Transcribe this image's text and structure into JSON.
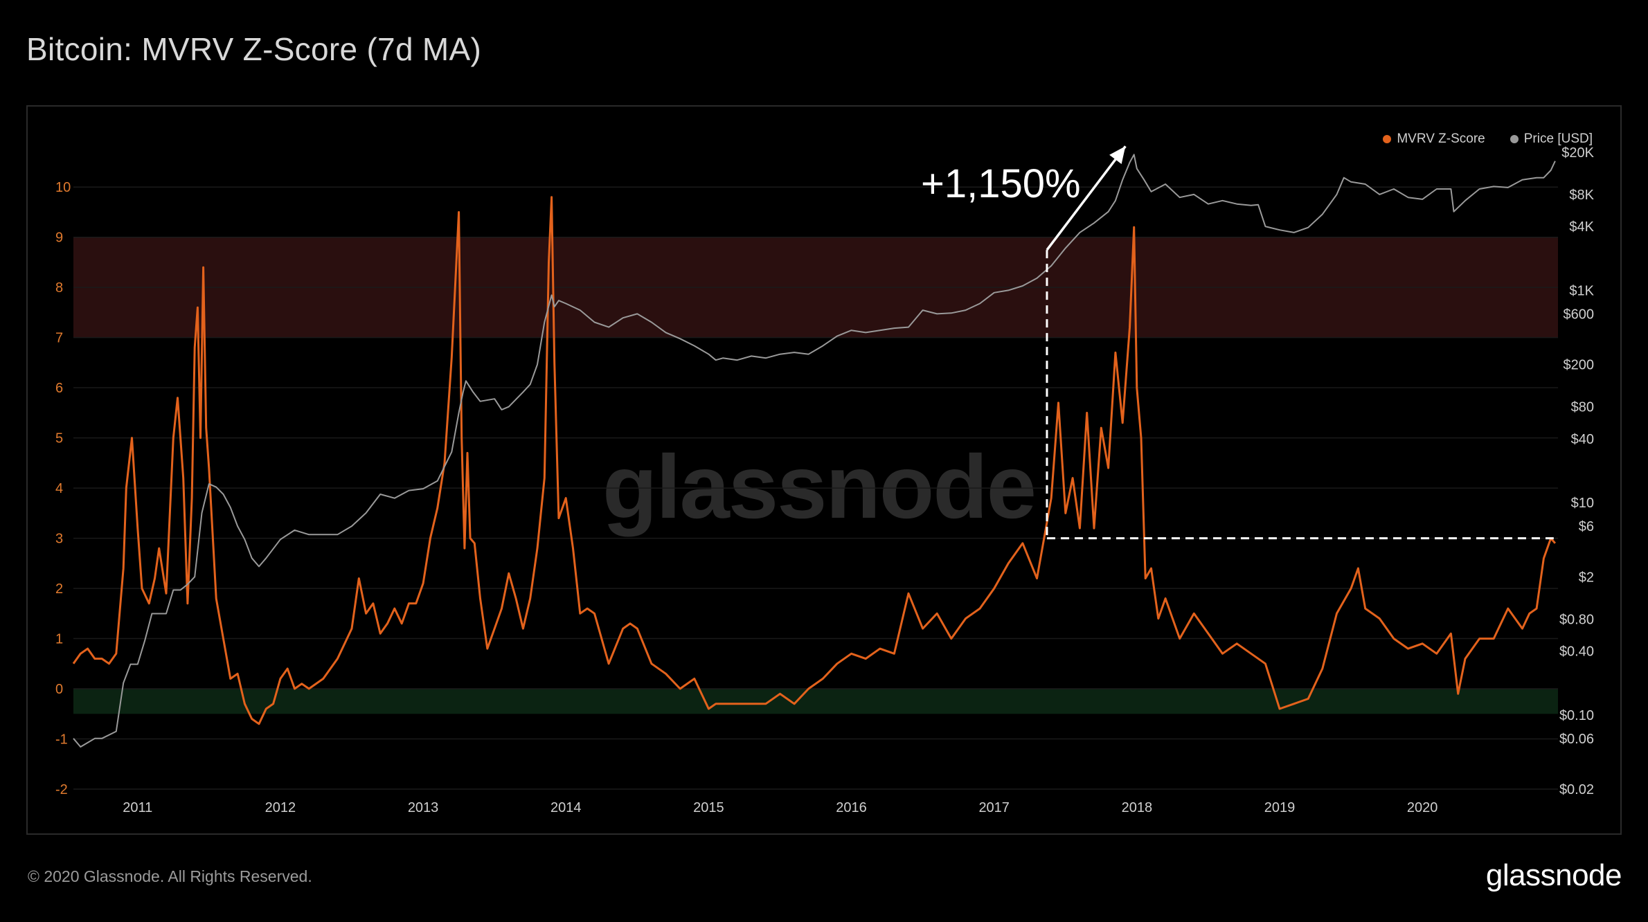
{
  "header": {
    "title": "Bitcoin: MVRV Z-Score (7d MA)"
  },
  "footer": {
    "copyright": "© 2020 Glassnode. All Rights Reserved.",
    "brand": "glassnode"
  },
  "watermark": "glassnode",
  "annotation": {
    "text": "+1,150%"
  },
  "colors": {
    "zscore": "#e3621c",
    "price": "#9a9a9a",
    "top_band": "#2a0f0f",
    "bottom_band": "#0b2312",
    "background": "#000000"
  },
  "chart_data": {
    "type": "line",
    "title": "Bitcoin: MVRV Z-Score (7d MA)",
    "legend": {
      "placement": "top-right",
      "entries": [
        {
          "name": "MVRV Z-Score",
          "color": "#e3621c"
        },
        {
          "name": "Price [USD]",
          "color": "#9a9a9a"
        }
      ]
    },
    "x_axis": {
      "range": [
        2010.55,
        2020.95
      ],
      "tick_labels": [
        "2011",
        "2012",
        "2013",
        "2014",
        "2015",
        "2016",
        "2017",
        "2018",
        "2019",
        "2020"
      ],
      "tick_values": [
        2011,
        2012,
        2013,
        2014,
        2015,
        2016,
        2017,
        2018,
        2019,
        2020
      ]
    },
    "y_left": {
      "range": [
        -2,
        10.9
      ],
      "tick_labels": [
        "-2",
        "-1",
        "0",
        "1",
        "2",
        "3",
        "4",
        "5",
        "6",
        "7",
        "8",
        "9",
        "10"
      ]
    },
    "y_right": {
      "scale": "log",
      "range": [
        0.02,
        25000
      ],
      "tick_labels": [
        "$0.02",
        "$0.06",
        "$0.10",
        "$0.40",
        "$0.80",
        "$2",
        "$6",
        "$10",
        "$40",
        "$80",
        "$200",
        "$600",
        "$1K",
        "$4K",
        "$8K",
        "$20K"
      ],
      "tick_values": [
        0.02,
        0.06,
        0.1,
        0.4,
        0.8,
        2,
        6,
        10,
        40,
        80,
        200,
        600,
        1000,
        4000,
        8000,
        20000
      ]
    },
    "bands": [
      {
        "name": "top",
        "y_from": 7,
        "y_to": 9
      },
      {
        "name": "bottom",
        "y_from": -0.5,
        "y_to": 0
      }
    ],
    "grid": true,
    "series": [
      {
        "name": "MVRV Z-Score",
        "axis": "left",
        "x": [
          2010.55,
          2010.6,
          2010.65,
          2010.7,
          2010.75,
          2010.8,
          2010.85,
          2010.9,
          2010.92,
          2010.96,
          2011.0,
          2011.03,
          2011.08,
          2011.12,
          2011.15,
          2011.2,
          2011.25,
          2011.28,
          2011.32,
          2011.35,
          2011.38,
          2011.4,
          2011.42,
          2011.44,
          2011.46,
          2011.48,
          2011.5,
          2011.55,
          2011.6,
          2011.65,
          2011.7,
          2011.75,
          2011.8,
          2011.85,
          2011.9,
          2011.95,
          2012.0,
          2012.05,
          2012.1,
          2012.15,
          2012.2,
          2012.3,
          2012.4,
          2012.5,
          2012.55,
          2012.6,
          2012.65,
          2012.7,
          2012.75,
          2012.8,
          2012.85,
          2012.9,
          2012.95,
          2013.0,
          2013.05,
          2013.1,
          2013.15,
          2013.2,
          2013.25,
          2013.27,
          2013.29,
          2013.31,
          2013.33,
          2013.36,
          2013.4,
          2013.45,
          2013.5,
          2013.55,
          2013.6,
          2013.65,
          2013.7,
          2013.75,
          2013.8,
          2013.85,
          2013.88,
          2013.9,
          2013.92,
          2013.95,
          2014.0,
          2014.05,
          2014.1,
          2014.15,
          2014.2,
          2014.3,
          2014.4,
          2014.45,
          2014.5,
          2014.6,
          2014.7,
          2014.8,
          2014.9,
          2015.0,
          2015.05,
          2015.1,
          2015.2,
          2015.3,
          2015.4,
          2015.5,
          2015.6,
          2015.7,
          2015.8,
          2015.9,
          2016.0,
          2016.1,
          2016.2,
          2016.3,
          2016.4,
          2016.5,
          2016.6,
          2016.7,
          2016.8,
          2016.9,
          2017.0,
          2017.1,
          2017.2,
          2017.3,
          2017.4,
          2017.45,
          2017.5,
          2017.55,
          2017.6,
          2017.65,
          2017.7,
          2017.75,
          2017.8,
          2017.85,
          2017.9,
          2017.95,
          2017.98,
          2018.0,
          2018.03,
          2018.06,
          2018.1,
          2018.15,
          2018.2,
          2018.3,
          2018.4,
          2018.5,
          2018.6,
          2018.7,
          2018.8,
          2018.9,
          2019.0,
          2019.1,
          2019.2,
          2019.3,
          2019.4,
          2019.5,
          2019.55,
          2019.6,
          2019.7,
          2019.8,
          2019.9,
          2020.0,
          2020.1,
          2020.2,
          2020.25,
          2020.3,
          2020.4,
          2020.5,
          2020.6,
          2020.7,
          2020.75,
          2020.8,
          2020.85,
          2020.9,
          2020.93
        ],
        "y": [
          0.5,
          0.7,
          0.8,
          0.6,
          0.6,
          0.5,
          0.7,
          2.4,
          4.0,
          5.0,
          3.2,
          2.0,
          1.7,
          2.2,
          2.8,
          1.9,
          5.0,
          5.8,
          4.2,
          1.7,
          3.8,
          6.8,
          7.6,
          5.0,
          8.4,
          5.2,
          4.4,
          1.8,
          1.0,
          0.2,
          0.3,
          -0.3,
          -0.6,
          -0.7,
          -0.4,
          -0.3,
          0.2,
          0.4,
          0.0,
          0.1,
          0.0,
          0.2,
          0.6,
          1.2,
          2.2,
          1.5,
          1.7,
          1.1,
          1.3,
          1.6,
          1.3,
          1.7,
          1.7,
          2.1,
          3.0,
          3.6,
          4.5,
          6.6,
          9.5,
          5.0,
          2.8,
          4.7,
          3.0,
          2.9,
          1.8,
          0.8,
          1.2,
          1.6,
          2.3,
          1.8,
          1.2,
          1.8,
          2.8,
          4.2,
          8.5,
          9.8,
          6.5,
          3.4,
          3.8,
          2.8,
          1.5,
          1.6,
          1.5,
          0.5,
          1.2,
          1.3,
          1.2,
          0.5,
          0.3,
          0.0,
          0.2,
          -0.4,
          -0.3,
          -0.3,
          -0.3,
          -0.3,
          -0.3,
          -0.1,
          -0.3,
          0.0,
          0.2,
          0.5,
          0.7,
          0.6,
          0.8,
          0.7,
          1.9,
          1.2,
          1.5,
          1.0,
          1.4,
          1.6,
          2.0,
          2.5,
          2.9,
          2.2,
          3.8,
          5.7,
          3.5,
          4.2,
          3.2,
          5.5,
          3.2,
          5.2,
          4.4,
          6.7,
          5.3,
          7.2,
          9.2,
          6.0,
          5.0,
          2.2,
          2.4,
          1.4,
          1.8,
          1.0,
          1.5,
          1.1,
          0.7,
          0.9,
          0.7,
          0.5,
          -0.4,
          -0.3,
          -0.2,
          0.4,
          1.5,
          2.0,
          2.4,
          1.6,
          1.4,
          1.0,
          0.8,
          0.9,
          0.7,
          1.1,
          -0.1,
          0.6,
          1.0,
          1.0,
          1.6,
          1.2,
          1.5,
          1.6,
          2.6,
          3.0,
          2.9
        ]
      },
      {
        "name": "Price [USD]",
        "axis": "right",
        "x": [
          2010.55,
          2010.6,
          2010.7,
          2010.75,
          2010.85,
          2010.9,
          2010.95,
          2011.0,
          2011.05,
          2011.1,
          2011.15,
          2011.2,
          2011.25,
          2011.3,
          2011.35,
          2011.4,
          2011.45,
          2011.5,
          2011.55,
          2011.6,
          2011.65,
          2011.7,
          2011.75,
          2011.8,
          2011.85,
          2011.9,
          2012.0,
          2012.1,
          2012.2,
          2012.3,
          2012.4,
          2012.5,
          2012.6,
          2012.7,
          2012.8,
          2012.9,
          2013.0,
          2013.1,
          2013.2,
          2013.25,
          2013.28,
          2013.3,
          2013.35,
          2013.4,
          2013.5,
          2013.55,
          2013.6,
          2013.7,
          2013.75,
          2013.8,
          2013.85,
          2013.9,
          2013.92,
          2013.95,
          2014.0,
          2014.1,
          2014.2,
          2014.3,
          2014.4,
          2014.5,
          2014.6,
          2014.7,
          2014.8,
          2014.9,
          2015.0,
          2015.05,
          2015.1,
          2015.2,
          2015.3,
          2015.4,
          2015.5,
          2015.6,
          2015.7,
          2015.8,
          2015.9,
          2016.0,
          2016.1,
          2016.2,
          2016.3,
          2016.4,
          2016.5,
          2016.6,
          2016.7,
          2016.8,
          2016.9,
          2017.0,
          2017.1,
          2017.2,
          2017.3,
          2017.4,
          2017.5,
          2017.6,
          2017.7,
          2017.8,
          2017.85,
          2017.9,
          2017.95,
          2017.98,
          2018.0,
          2018.05,
          2018.1,
          2018.2,
          2018.3,
          2018.4,
          2018.5,
          2018.6,
          2018.7,
          2018.8,
          2018.85,
          2018.9,
          2019.0,
          2019.1,
          2019.2,
          2019.3,
          2019.4,
          2019.45,
          2019.5,
          2019.6,
          2019.7,
          2019.8,
          2019.9,
          2020.0,
          2020.1,
          2020.2,
          2020.22,
          2020.3,
          2020.4,
          2020.5,
          2020.6,
          2020.7,
          2020.8,
          2020.85,
          2020.9,
          2020.93
        ],
        "y": [
          0.06,
          0.05,
          0.06,
          0.06,
          0.07,
          0.2,
          0.3,
          0.3,
          0.5,
          0.9,
          0.9,
          0.9,
          1.5,
          1.5,
          1.7,
          2.0,
          8.0,
          15.0,
          14.0,
          12.0,
          9.0,
          6.0,
          4.5,
          3.0,
          2.5,
          3.0,
          4.5,
          5.5,
          5.0,
          5.0,
          5.0,
          6.0,
          8.0,
          12.0,
          11.0,
          13.0,
          13.5,
          16.0,
          30.0,
          70.0,
          110.0,
          140.0,
          110.0,
          90.0,
          95.0,
          75.0,
          80.0,
          110.0,
          130.0,
          200.0,
          500.0,
          900.0,
          700.0,
          800.0,
          750.0,
          650.0,
          500.0,
          450.0,
          550.0,
          600.0,
          500.0,
          400.0,
          350.0,
          300.0,
          250.0,
          220.0,
          230.0,
          220.0,
          240.0,
          230.0,
          250.0,
          260.0,
          250.0,
          300.0,
          370.0,
          420.0,
          400.0,
          420.0,
          440.0,
          450.0,
          650.0,
          600.0,
          610.0,
          650.0,
          750.0,
          950.0,
          1000.0,
          1100.0,
          1300.0,
          1700.0,
          2500.0,
          3500.0,
          4300.0,
          5500.0,
          7000.0,
          11000.0,
          16000.0,
          19000.0,
          14000.0,
          11000.0,
          8500.0,
          10000.0,
          7500.0,
          8000.0,
          6500.0,
          7000.0,
          6500.0,
          6300.0,
          6400.0,
          4000.0,
          3700.0,
          3500.0,
          3900.0,
          5200.0,
          8000.0,
          11500.0,
          10500.0,
          10000.0,
          8000.0,
          9000.0,
          7500.0,
          7200.0,
          9000.0,
          9000.0,
          5500.0,
          7000.0,
          9000.0,
          9500.0,
          9300.0,
          11000.0,
          11500.0,
          11500.0,
          13500.0,
          16500.0
        ]
      }
    ]
  }
}
